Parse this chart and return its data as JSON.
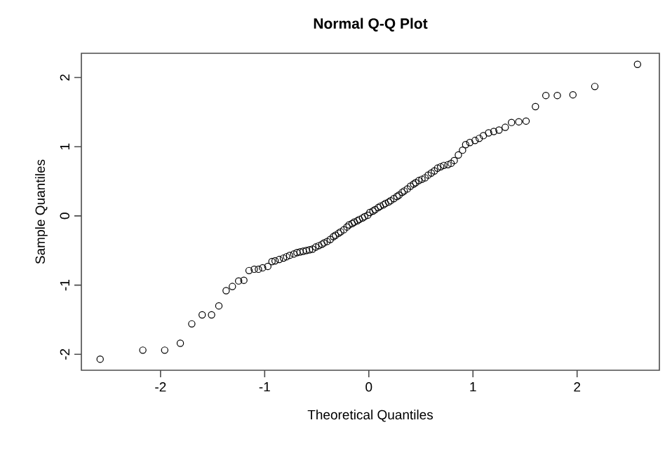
{
  "chart_data": {
    "type": "scatter",
    "title": "Normal Q-Q Plot",
    "xlabel": "Theoretical Quantiles",
    "ylabel": "Sample Quantiles",
    "x": [
      -2.58,
      -2.17,
      -1.96,
      -1.81,
      -1.7,
      -1.6,
      -1.51,
      -1.44,
      -1.37,
      -1.31,
      -1.25,
      -1.2,
      -1.15,
      -1.1,
      -1.06,
      -1.02,
      -0.97,
      -0.93,
      -0.9,
      -0.86,
      -0.82,
      -0.79,
      -0.76,
      -0.72,
      -0.69,
      -0.66,
      -0.63,
      -0.6,
      -0.57,
      -0.54,
      -0.51,
      -0.48,
      -0.45,
      -0.43,
      -0.4,
      -0.37,
      -0.34,
      -0.32,
      -0.29,
      -0.27,
      -0.24,
      -0.21,
      -0.19,
      -0.16,
      -0.14,
      -0.11,
      -0.09,
      -0.06,
      -0.04,
      -0.01,
      0.01,
      0.04,
      0.06,
      0.09,
      0.11,
      0.14,
      0.16,
      0.19,
      0.21,
      0.24,
      0.27,
      0.29,
      0.32,
      0.34,
      0.37,
      0.4,
      0.43,
      0.45,
      0.48,
      0.51,
      0.54,
      0.57,
      0.6,
      0.63,
      0.66,
      0.69,
      0.72,
      0.76,
      0.79,
      0.82,
      0.86,
      0.9,
      0.93,
      0.97,
      1.02,
      1.06,
      1.1,
      1.15,
      1.2,
      1.25,
      1.31,
      1.37,
      1.44,
      1.51,
      1.6,
      1.7,
      1.81,
      1.96,
      2.17,
      2.58
    ],
    "values": [
      -2.07,
      -1.94,
      -1.94,
      -1.84,
      -1.56,
      -1.43,
      -1.43,
      -1.3,
      -1.08,
      -1.02,
      -0.94,
      -0.93,
      -0.79,
      -0.77,
      -0.77,
      -0.75,
      -0.73,
      -0.66,
      -0.65,
      -0.63,
      -0.61,
      -0.59,
      -0.57,
      -0.55,
      -0.53,
      -0.52,
      -0.51,
      -0.5,
      -0.49,
      -0.48,
      -0.45,
      -0.43,
      -0.41,
      -0.39,
      -0.37,
      -0.34,
      -0.3,
      -0.28,
      -0.25,
      -0.23,
      -0.2,
      -0.16,
      -0.13,
      -0.11,
      -0.09,
      -0.07,
      -0.05,
      -0.03,
      -0.01,
      0.01,
      0.05,
      0.07,
      0.09,
      0.12,
      0.14,
      0.16,
      0.18,
      0.2,
      0.22,
      0.25,
      0.28,
      0.3,
      0.34,
      0.36,
      0.39,
      0.43,
      0.46,
      0.48,
      0.51,
      0.53,
      0.55,
      0.59,
      0.62,
      0.65,
      0.69,
      0.71,
      0.73,
      0.74,
      0.76,
      0.8,
      0.88,
      0.95,
      1.03,
      1.06,
      1.09,
      1.12,
      1.16,
      1.2,
      1.22,
      1.24,
      1.28,
      1.35,
      1.36,
      1.37,
      1.58,
      1.74,
      1.74,
      1.75,
      1.87,
      2.19
    ],
    "color": "#000000",
    "marker": "circle",
    "xlim": [
      -2.76,
      2.79
    ],
    "ylim": [
      -2.23,
      2.35
    ],
    "xticks": [
      -2,
      -1,
      0,
      1,
      2
    ],
    "yticks": [
      -2,
      -1,
      0,
      1,
      2
    ],
    "grid": false
  }
}
